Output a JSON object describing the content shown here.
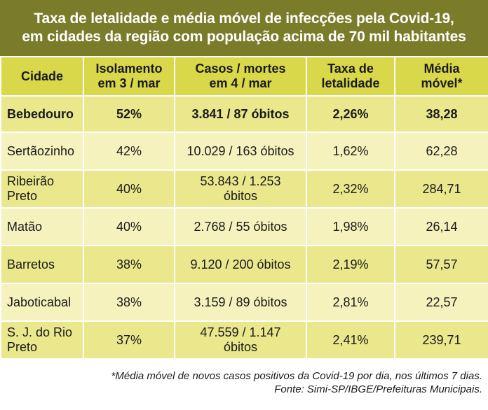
{
  "title": {
    "line1": "Taxa de letalidade e média móvel de infecções pela Covid-19,",
    "line2": "em cidades da região com população acima de 70 mil habitantes"
  },
  "headers": [
    [
      "Cidade"
    ],
    [
      "Isolamento",
      "em 3 / mar"
    ],
    [
      "Casos / mortes",
      "em 4 / mar"
    ],
    [
      "Taxa de",
      "letalidade"
    ],
    [
      "Média",
      "móvel*"
    ]
  ],
  "rows": [
    {
      "city": [
        "Bebedouro"
      ],
      "isolamento": "52%",
      "casos": [
        "3.841 / 87 óbitos"
      ],
      "taxa": "2,26%",
      "media": "38,28"
    },
    {
      "city": [
        "Sertãozinho"
      ],
      "isolamento": "42%",
      "casos": [
        "10.029  / 163 óbitos"
      ],
      "taxa": "1,62%",
      "media": "62,28"
    },
    {
      "city": [
        "Ribeirão",
        "Preto"
      ],
      "isolamento": "40%",
      "casos": [
        "53.843 / 1.253",
        "óbitos"
      ],
      "taxa": "2,32%",
      "media": "284,71"
    },
    {
      "city": [
        "Matão"
      ],
      "isolamento": "40%",
      "casos": [
        "2.768 / 55 óbitos"
      ],
      "taxa": "1,98%",
      "media": "26,14"
    },
    {
      "city": [
        "Barretos"
      ],
      "isolamento": "38%",
      "casos": [
        "9.120  / 200 óbitos"
      ],
      "taxa": "2,19%",
      "media": "57,57"
    },
    {
      "city": [
        "Jaboticabal"
      ],
      "isolamento": "38%",
      "casos": [
        "3.159  / 89 óbitos"
      ],
      "taxa": "2,81%",
      "media": "22,57"
    },
    {
      "city": [
        "S. J. do Rio",
        "Preto"
      ],
      "isolamento": "37%",
      "casos": [
        "47.559 / 1.147",
        "óbitos"
      ],
      "taxa": "2,41%",
      "media": "239,71"
    }
  ],
  "footnote": {
    "line1": "*Média móvel de novos casos positivos da Covid-19 por dia, nos últimos 7 dias.",
    "line2": "Fonte: Simi-SP/IBGE/Prefeituras Municipais."
  },
  "colors": {
    "title_bg": "#7b7c2a",
    "header_bg": "#d9d84a",
    "row_dark": "#ebe78c",
    "row_light": "#f5f2bd"
  }
}
